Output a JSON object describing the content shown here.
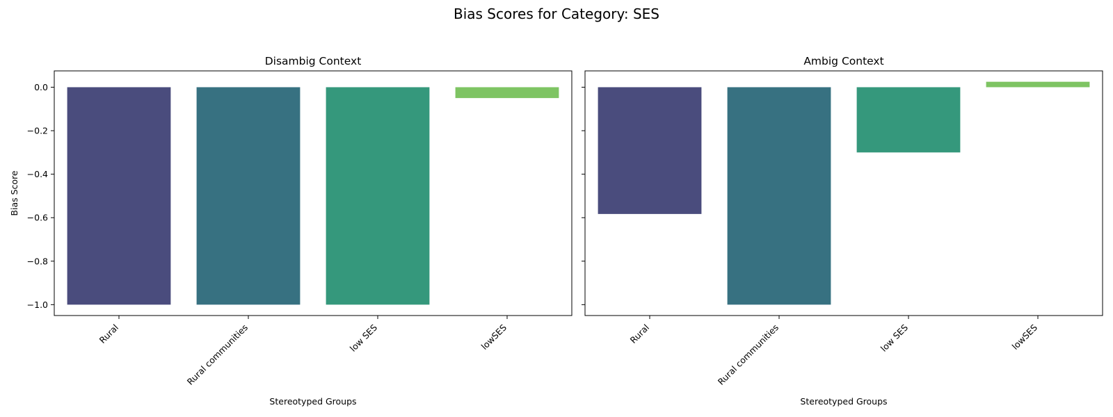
{
  "title": "Bias Scores for Category: SES",
  "chart_data": [
    {
      "type": "bar",
      "title": "Disambig Context",
      "xlabel": "Stereotyped Groups",
      "ylabel": "Bias Score",
      "categories": [
        "Rural",
        "Rural communities",
        "low SES",
        "lowSES"
      ],
      "values": [
        -1.0,
        -1.0,
        -1.0,
        -0.05
      ],
      "colors": [
        "#4a4c7d",
        "#377181",
        "#35987c",
        "#7ec463"
      ],
      "ylim": [
        -1.05,
        0.075
      ],
      "yticks": [
        0.0,
        -0.2,
        -0.4,
        -0.6,
        -0.8,
        -1.0
      ],
      "ytick_labels": [
        "0.0",
        "−0.2",
        "−0.4",
        "−0.6",
        "−0.8",
        "−1.0"
      ],
      "grid": false
    },
    {
      "type": "bar",
      "title": "Ambig Context",
      "xlabel": "Stereotyped Groups",
      "ylabel": "",
      "categories": [
        "Rural",
        "Rural communities",
        "low SES",
        "lowSES"
      ],
      "values": [
        -0.583,
        -1.0,
        -0.3,
        0.025
      ],
      "colors": [
        "#4a4c7d",
        "#377181",
        "#35987c",
        "#7ec463"
      ],
      "ylim": [
        -1.05,
        0.075
      ],
      "yticks": [
        0.0,
        -0.2,
        -0.4,
        -0.6,
        -0.8,
        -1.0
      ],
      "ytick_labels": [
        "",
        "",
        "",
        "",
        "",
        ""
      ],
      "grid": false
    }
  ]
}
